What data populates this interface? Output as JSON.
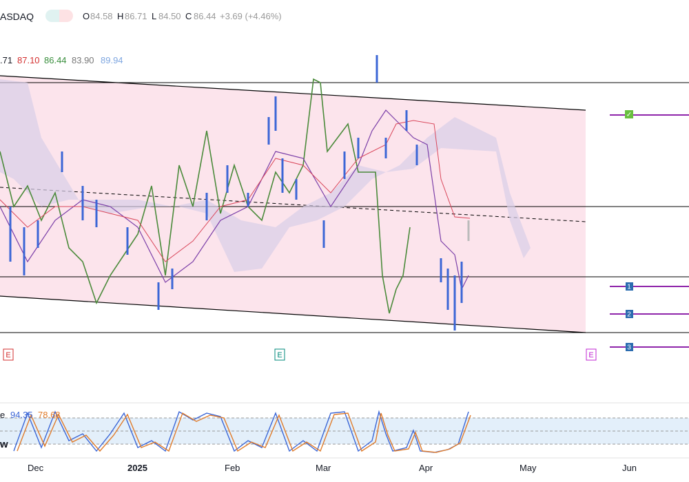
{
  "header": {
    "symbol": "ASDAQ",
    "open_label": "O",
    "open": "84.58",
    "high_label": "H",
    "high": "86.71",
    "low_label": "L",
    "low": "84.50",
    "close_label": "C",
    "close": "86.44",
    "change": "+3.69 (+4.46%)"
  },
  "indicator": {
    "values": [
      ".71",
      "87.10",
      "86.44",
      "83.90",
      "89.94"
    ]
  },
  "oscillator": {
    "name": "e",
    "values": [
      "94.35",
      "78.68"
    ],
    "side_label": "w"
  },
  "x_axis": {
    "labels": [
      "Dec",
      "2025",
      "Feb",
      "Mar",
      "Apr",
      "May",
      "Jun"
    ]
  },
  "markers": {
    "earnings": [
      "E",
      "E",
      "E"
    ],
    "targets": [
      "1",
      "2",
      "3"
    ],
    "check": "✓"
  }
}
